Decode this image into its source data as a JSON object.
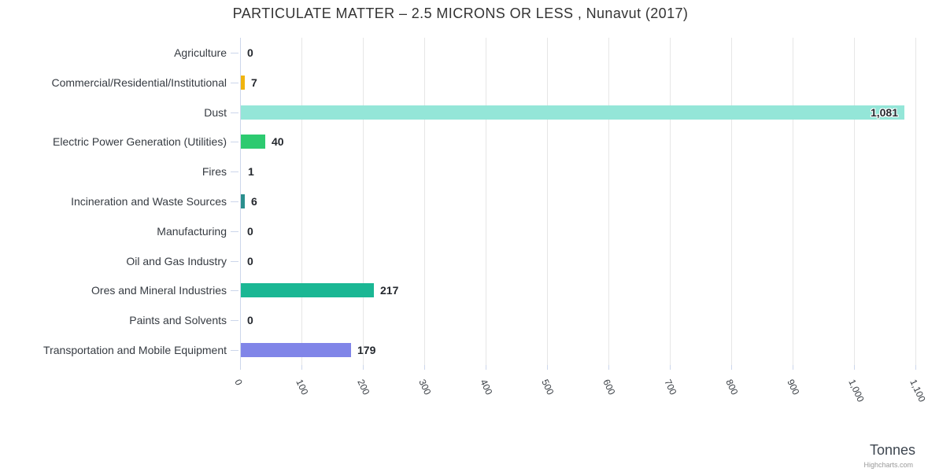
{
  "credits": "Highcharts.com",
  "chart_data": {
    "type": "bar",
    "orientation": "horizontal",
    "title": "PARTICULATE MATTER – 2.5 MICRONS OR LESS , Nunavut (2017)",
    "categories": [
      "Agriculture",
      "Commercial/Residential/Institutional",
      "Dust",
      "Electric Power Generation (Utilities)",
      "Fires",
      "Incineration and Waste Sources",
      "Manufacturing",
      "Oil and Gas Industry",
      "Ores and Mineral Industries",
      "Paints and Solvents",
      "Transportation and Mobile Equipment"
    ],
    "values": [
      0,
      7,
      1081,
      40,
      1,
      6,
      0,
      0,
      217,
      0,
      179
    ],
    "value_labels": [
      "0",
      "7",
      "1,081",
      "40",
      "1",
      "6",
      "0",
      "0",
      "217",
      "0",
      "179"
    ],
    "colors": [
      null,
      "#F0B40F",
      "#94E6D8",
      "#2DCA70",
      null,
      "#2A8F8D",
      null,
      null,
      "#1BB794",
      null,
      "#8085E8"
    ],
    "xlabel": "Tonnes",
    "ylabel": "",
    "xlim": [
      0,
      1100
    ],
    "x_ticks": [
      0,
      100,
      200,
      300,
      400,
      500,
      600,
      700,
      800,
      900,
      1000,
      1100
    ],
    "x_tick_labels": [
      "0",
      "100",
      "200",
      "300",
      "400",
      "500",
      "600",
      "700",
      "800",
      "900",
      "1,000",
      "1,100"
    ],
    "grid": true,
    "legend": false,
    "grid_color": "#e6e6e6",
    "axis_line_color": "#ccd6eb",
    "label_color": "#363b42",
    "value_label_color": "#24282e"
  }
}
